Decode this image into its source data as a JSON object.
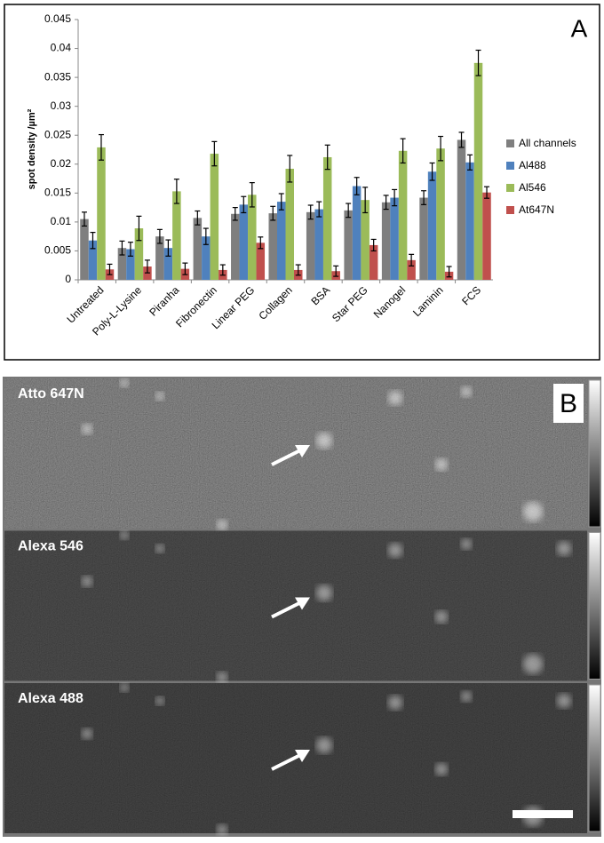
{
  "chart_data": {
    "type": "bar",
    "panel_label": "A",
    "y_label": "spot density /µm²",
    "categories": [
      "Untreated",
      "Poly-L-Lysine",
      "Piranha",
      "Fibronectin",
      "Linear PEG",
      "Collagen",
      "BSA",
      "Star PEG",
      "Nanogel",
      "Laminin",
      "FCS"
    ],
    "series": [
      {
        "name": "All channels",
        "color": "#7f7f7f",
        "values": [
          0.0105,
          0.0055,
          0.0075,
          0.0107,
          0.0114,
          0.0115,
          0.0117,
          0.012,
          0.0134,
          0.0142,
          0.0242
        ],
        "errors": [
          0.0012,
          0.0012,
          0.0012,
          0.0012,
          0.0011,
          0.0012,
          0.0012,
          0.0012,
          0.0012,
          0.0012,
          0.0013
        ]
      },
      {
        "name": "Al488",
        "color": "#4f81bd",
        "values": [
          0.0068,
          0.0053,
          0.0055,
          0.0075,
          0.013,
          0.0135,
          0.0122,
          0.0162,
          0.0142,
          0.0187,
          0.0203
        ],
        "errors": [
          0.0014,
          0.0012,
          0.0014,
          0.0014,
          0.0014,
          0.0014,
          0.0013,
          0.0015,
          0.0014,
          0.0015,
          0.0013
        ]
      },
      {
        "name": "Al546",
        "color": "#9bbb59",
        "values": [
          0.0229,
          0.0089,
          0.0153,
          0.0218,
          0.0147,
          0.0192,
          0.0212,
          0.0138,
          0.0223,
          0.0227,
          0.0375
        ],
        "errors": [
          0.0022,
          0.0021,
          0.0021,
          0.0021,
          0.0021,
          0.0023,
          0.0021,
          0.0022,
          0.0021,
          0.0021,
          0.0022
        ]
      },
      {
        "name": "At647N",
        "color": "#c0504d",
        "values": [
          0.0018,
          0.0023,
          0.0019,
          0.0017,
          0.0064,
          0.0017,
          0.0015,
          0.006,
          0.0034,
          0.0014,
          0.0151
        ],
        "errors": [
          0.0009,
          0.0011,
          0.001,
          0.0009,
          0.001,
          0.0009,
          0.0009,
          0.001,
          0.001,
          0.0009,
          0.001
        ]
      }
    ],
    "ylim": [
      0,
      0.045
    ],
    "yticks": [
      0,
      0.005,
      0.01,
      0.015,
      0.02,
      0.025,
      0.03,
      0.035,
      0.04,
      0.045
    ],
    "grid": false,
    "legend": "right"
  },
  "panel_b": {
    "label": "B",
    "images": [
      {
        "label": "Atto 647N"
      },
      {
        "label": "Alexa 546"
      },
      {
        "label": "Alexa 488"
      }
    ]
  }
}
